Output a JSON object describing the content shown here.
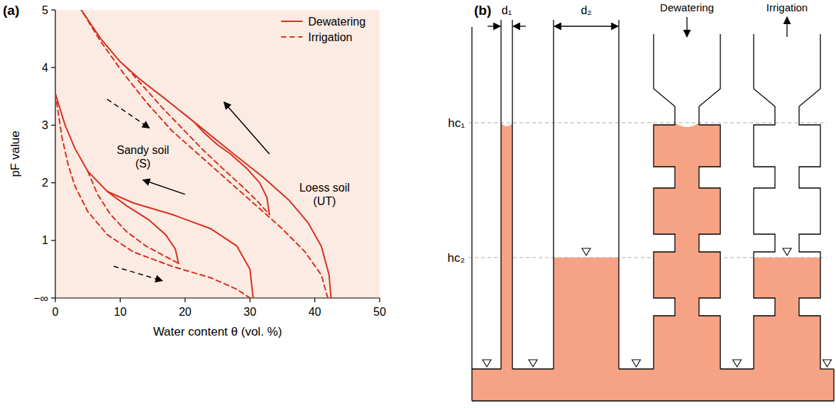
{
  "chart_data": {
    "type": "line",
    "panel_label": "(a)",
    "x_label": "Water content θ (vol. %)",
    "y_label": "pF value",
    "xlim": [
      0,
      50
    ],
    "ylim": [
      0,
      5
    ],
    "xticks": [
      0,
      10,
      20,
      30,
      40,
      50
    ],
    "yticks": [
      {
        "value": 0,
        "label": "−∞"
      },
      1,
      2,
      3,
      4,
      5
    ],
    "grid": false,
    "legend": "upper right",
    "series": [
      {
        "name": "Dewatering",
        "color": "#d7301f",
        "line_style": "solid",
        "x": [
          42.5,
          42.2,
          41,
          39,
          36,
          32,
          27.5,
          22,
          17,
          13,
          10,
          7,
          4
        ],
        "values": [
          0,
          0.4,
          0.9,
          1.3,
          1.7,
          2.1,
          2.5,
          3.0,
          3.45,
          3.8,
          4.1,
          4.5,
          5
        ]
      },
      {
        "name": "Irrigation",
        "color": "#d7301f",
        "line_style": "dashed",
        "x": [
          42,
          41,
          38.5,
          35,
          31,
          27,
          22.5,
          18,
          14,
          10.5,
          7,
          4
        ],
        "values": [
          0,
          0.4,
          0.8,
          1.2,
          1.6,
          2.0,
          2.45,
          2.9,
          3.4,
          3.9,
          4.45,
          5
        ]
      },
      {
        "name": "Dewatering",
        "color": "#d7301f",
        "line_style": "solid",
        "x": [
          33,
          32.6,
          31.5,
          29.5,
          27,
          25,
          23,
          21.5
        ],
        "values": [
          1.45,
          1.75,
          2.0,
          2.25,
          2.5,
          2.66,
          2.86,
          3.04
        ]
      },
      {
        "name": "Irrigation",
        "color": "#d7301f",
        "line_style": "dashed",
        "x": [
          11,
          13.5,
          16.5,
          19.5,
          22.5,
          25.5,
          28.5,
          31,
          33
        ],
        "values": [
          4.0,
          3.68,
          3.3,
          2.95,
          2.6,
          2.28,
          1.97,
          1.7,
          1.45
        ]
      },
      {
        "name": "Dewatering",
        "color": "#d7301f",
        "line_style": "solid",
        "x": [
          30.5,
          30,
          28,
          24,
          18,
          12,
          8,
          5,
          3,
          1.5,
          0
        ],
        "values": [
          0,
          0.5,
          0.9,
          1.2,
          1.45,
          1.65,
          1.85,
          2.2,
          2.6,
          3.0,
          3.55
        ]
      },
      {
        "name": "Irrigation",
        "color": "#d7301f",
        "line_style": "dashed",
        "x": [
          0,
          1,
          2,
          3,
          5,
          8,
          12,
          18,
          24,
          28,
          30
        ],
        "values": [
          3.55,
          2.8,
          2.3,
          1.95,
          1.5,
          1.1,
          0.8,
          0.55,
          0.35,
          0.15,
          0
        ]
      },
      {
        "name": "Dewatering",
        "color": "#d7301f",
        "line_style": "solid",
        "x": [
          19,
          18.5,
          17,
          14.5,
          11,
          8
        ],
        "values": [
          0.6,
          0.85,
          1.1,
          1.35,
          1.6,
          1.85
        ]
      },
      {
        "name": "Irrigation",
        "color": "#d7301f",
        "line_style": "dashed",
        "x": [
          5,
          6.5,
          8.5,
          11,
          14,
          17,
          19
        ],
        "values": [
          2.2,
          1.8,
          1.45,
          1.15,
          0.9,
          0.72,
          0.6
        ]
      }
    ],
    "annotations": [
      {
        "text": [
          "Sandy soil",
          "(S)"
        ],
        "x": 13.5,
        "y": 2.45
      },
      {
        "text": [
          "Loess soil",
          "(UT)"
        ],
        "x": 41.5,
        "y": 1.8
      }
    ],
    "arrows": [
      {
        "x": [
          33,
          26
        ],
        "y": [
          2.5,
          3.4
        ],
        "line_style": "solid"
      },
      {
        "x": [
          8,
          14.5
        ],
        "y": [
          3.45,
          2.95
        ],
        "line_style": "dashed"
      },
      {
        "x": [
          20,
          13.5
        ],
        "y": [
          1.8,
          2.05
        ],
        "line_style": "solid"
      },
      {
        "x": [
          9,
          16.5
        ],
        "y": [
          0.55,
          0.3
        ],
        "line_style": "dashed"
      }
    ]
  },
  "diagram": {
    "panel_label": "(b)",
    "widths": [
      "d₁",
      "d₂"
    ],
    "heights": [
      "hc₁",
      "hc₂"
    ],
    "processes": [
      "Dewatering",
      "Irrigation"
    ]
  }
}
